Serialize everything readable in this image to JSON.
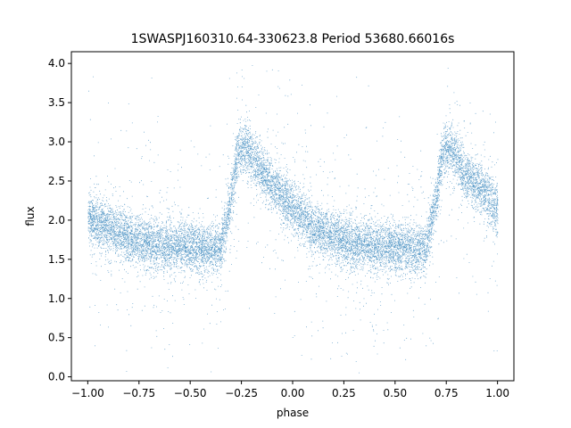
{
  "chart_data": {
    "type": "scatter",
    "title": "1SWASPJ160310.64-330623.8 Period 53680.66016s",
    "xlabel": "phase",
    "ylabel": "flux",
    "xlim": [
      -1.08,
      1.08
    ],
    "ylim": [
      -0.05,
      4.15
    ],
    "xticks": [
      {
        "value": -1.0,
        "label": "−1.00"
      },
      {
        "value": -0.75,
        "label": "−0.75"
      },
      {
        "value": -0.5,
        "label": "−0.50"
      },
      {
        "value": -0.25,
        "label": "−0.25"
      },
      {
        "value": 0.0,
        "label": "0.00"
      },
      {
        "value": 0.25,
        "label": "0.25"
      },
      {
        "value": 0.5,
        "label": "0.50"
      },
      {
        "value": 0.75,
        "label": "0.75"
      },
      {
        "value": 1.0,
        "label": "1.00"
      }
    ],
    "yticks": [
      {
        "value": 0.0,
        "label": "0.0"
      },
      {
        "value": 0.5,
        "label": "0.5"
      },
      {
        "value": 1.0,
        "label": "1.0"
      },
      {
        "value": 1.5,
        "label": "1.5"
      },
      {
        "value": 2.0,
        "label": "2.0"
      },
      {
        "value": 2.5,
        "label": "2.5"
      },
      {
        "value": 3.0,
        "label": "3.0"
      },
      {
        "value": 3.5,
        "label": "3.5"
      },
      {
        "value": 4.0,
        "label": "4.0"
      }
    ],
    "grid": false,
    "legend": "none",
    "series": [
      {
        "color": "#1f77b4",
        "period_in_phase": 1.0,
        "profile": {
          "phase": [
            -1.0,
            -0.9,
            -0.8,
            -0.7,
            -0.6,
            -0.5,
            -0.4,
            -0.35,
            -0.3,
            -0.27,
            -0.23,
            -0.2,
            -0.15,
            -0.1,
            -0.05,
            0.0,
            0.05,
            0.1,
            0.2,
            0.3,
            0.4,
            0.5,
            0.6,
            0.65,
            0.7,
            0.73,
            0.77,
            0.8,
            0.85,
            0.9,
            0.95,
            1.0
          ],
          "flux": [
            2.02,
            1.9,
            1.8,
            1.7,
            1.67,
            1.66,
            1.62,
            1.65,
            2.3,
            2.85,
            2.95,
            2.8,
            2.6,
            2.45,
            2.3,
            2.15,
            2.05,
            1.9,
            1.8,
            1.7,
            1.66,
            1.66,
            1.62,
            1.65,
            2.3,
            2.85,
            2.95,
            2.8,
            2.55,
            2.45,
            2.3,
            2.1
          ]
        }
      }
    ]
  }
}
